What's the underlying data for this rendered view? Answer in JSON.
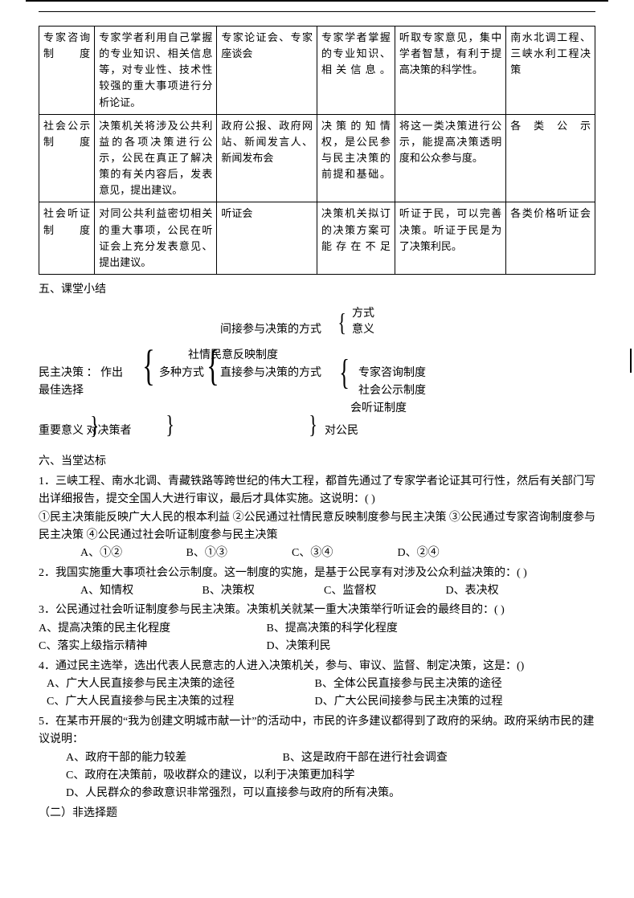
{
  "table": {
    "col_widths_pct": [
      10,
      22,
      18,
      14,
      20,
      16
    ],
    "rows": [
      {
        "c0": "专家咨询制度",
        "c1": "专家学者利用自己掌握的专业知识、相关信息等，对专业性、技术性较强的重大事项进行分析论证。",
        "c2": "专家论证会、专家座谈会",
        "c3": "专家学者掌握的专业知识、相关信息。",
        "c4": "听取专家意见，集中学者智慧，有利于提高决策的科学性。",
        "c5": "南水北调工程、三峡水利工程决策"
      },
      {
        "c0": "社会公示制度",
        "c1": "决策机关将涉及公共利益的各项决策进行公示，公民在真正了解决策的有关内容后，发表意见，提出建议。",
        "c2": "政府公报、政府网站、新闻发言人、新闻发布会",
        "c3": "决策的知情权，是公民参与民主决策的前提和基础。",
        "c4": "将这一类决策进行公示，能提高决策透明度和公众参与度。",
        "c5": "各类公示"
      },
      {
        "c0": "社会听证制度",
        "c1": "对同公共利益密切相关的重大事项，公民在听证会上充分发表意见、提出建议。",
        "c2": "听证会",
        "c3": "决策机关拟订的决策方案可能存在不足",
        "c4": "听证于民，可以完善决策。听证于民是为了决策利民。",
        "c5": "各类价格听证会"
      }
    ]
  },
  "sec5": {
    "title": "五、课堂小结"
  },
  "diagram": {
    "root_a": "民主决策 ：  作出",
    "root_b": "最佳选择",
    "node_methods": "多种方式",
    "node_indirect": "间接参与决策的方式",
    "node_direct": "直接参与决策的方式",
    "node_form": "方式",
    "node_meaning": "意义",
    "node_sqmy": "社情民意反映制度",
    "node_expert": "专家咨询制度",
    "node_public": "社会公示制度",
    "node_hearing_sys": "会听证制度",
    "sig_label": "重要意义    对决策者",
    "sig_citizen": "对公民"
  },
  "sec6": {
    "title": "六、当堂达标"
  },
  "questions": {
    "q1": {
      "stem": "1．三峡工程、南水北调、青藏铁路等跨世纪的伟大工程，都首先通过了专家学者论证其可行性，然后有关部门写出详细报告，提交全国人大进行审议，最后才具体实施。这说明：(  )",
      "line2": "①民主决策能反映广大人民的根本利益  ②公民通过社情民意反映制度参与民主决策  ③公民通过专家咨询制度参与民主决策  ④公民通过社会听证制度参与民主决策",
      "A": "A、①②",
      "B": "B、①③",
      "C": "C、③④",
      "D": "D、②④"
    },
    "q2": {
      "stem": "2．我国实施重大事项社会公示制度。这一制度的实施，是基于公民享有对涉及公众利益决策的：(  )",
      "A": "A、知情权",
      "B": "B、决策权",
      "C": "C、监督权",
      "D": "D、表决权"
    },
    "q3": {
      "stem": "3．公民通过社会听证制度参与民主决策。决策机关就某一重大决策举行听证会的最终目的：(  )",
      "A": "A、提高决策的民主化程度",
      "B": "B、提高决策的科学化程度",
      "C": "C、落实上级指示精神",
      "D": "D、决策利民"
    },
    "q4": {
      "stem": "4．通过民主选举，选出代表人民意志的人进入决策机关，参与、审议、监督、制定决策，这是：()",
      "A": "A、广大人民直接参与民主决策的途径",
      "B": "B、全体公民直接参与民主决策的途径",
      "C": "C、广大人民直接参与民主决策的过程",
      "D": "D、广大公民间接参与民主决策的过程"
    },
    "q5": {
      "stem": "5．在某市开展的“我为创建文明城市献一计”的活动中，市民的许多建议都得到了政府的采纳。政府采纳市民的建议说明：",
      "A": "A、政府干部的能力较差",
      "B": "B、这是政府干部在进行社会调查",
      "C": "C、政府在决策前，吸收群众的建议，以利于决策更加科学",
      "D": "D、人民群众的参政意识非常强烈，可以直接参与政府的所有决策。"
    },
    "part2": "（二）非选择题"
  }
}
